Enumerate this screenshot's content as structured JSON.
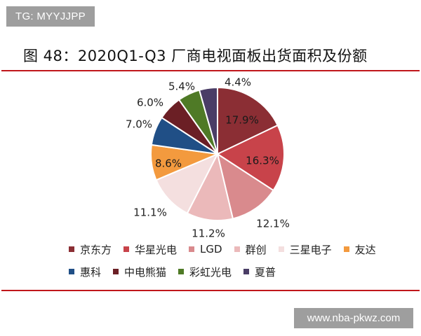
{
  "watermark_top": "TG: MYYJJPP",
  "watermark_bottom": "www.nba-pkwz.com",
  "figure_title": "图 48：2020Q1-Q3 厂商电视面板出货面积及份额",
  "chart_data": {
    "type": "pie",
    "title": "",
    "unit": "%",
    "legend_position": "bottom",
    "slices": [
      {
        "name": "京东方",
        "value": 17.9,
        "label": "17.9%",
        "color": "#8b2e34"
      },
      {
        "name": "华星光电",
        "value": 16.3,
        "label": "16.3%",
        "color": "#c8434a"
      },
      {
        "name": "LGD",
        "value": 12.1,
        "label": "12.1%",
        "color": "#d98a8d"
      },
      {
        "name": "群创",
        "value": 11.2,
        "label": "11.2%",
        "color": "#ebb9ba"
      },
      {
        "name": "三星电子",
        "value": 11.1,
        "label": "11.1%",
        "color": "#f4dfdf"
      },
      {
        "name": "友达",
        "value": 8.6,
        "label": "8.6%",
        "color": "#f39a3e"
      },
      {
        "name": "惠科",
        "value": 7.0,
        "label": "7.0%",
        "color": "#204f86"
      },
      {
        "name": "中电熊猫",
        "value": 6.0,
        "label": "6.0%",
        "color": "#6b1f25"
      },
      {
        "name": "彩虹光电",
        "value": 5.4,
        "label": "5.4%",
        "color": "#4f7a26"
      },
      {
        "name": "夏普",
        "value": 4.4,
        "label": "4.4%",
        "color": "#4a3d66"
      }
    ]
  }
}
